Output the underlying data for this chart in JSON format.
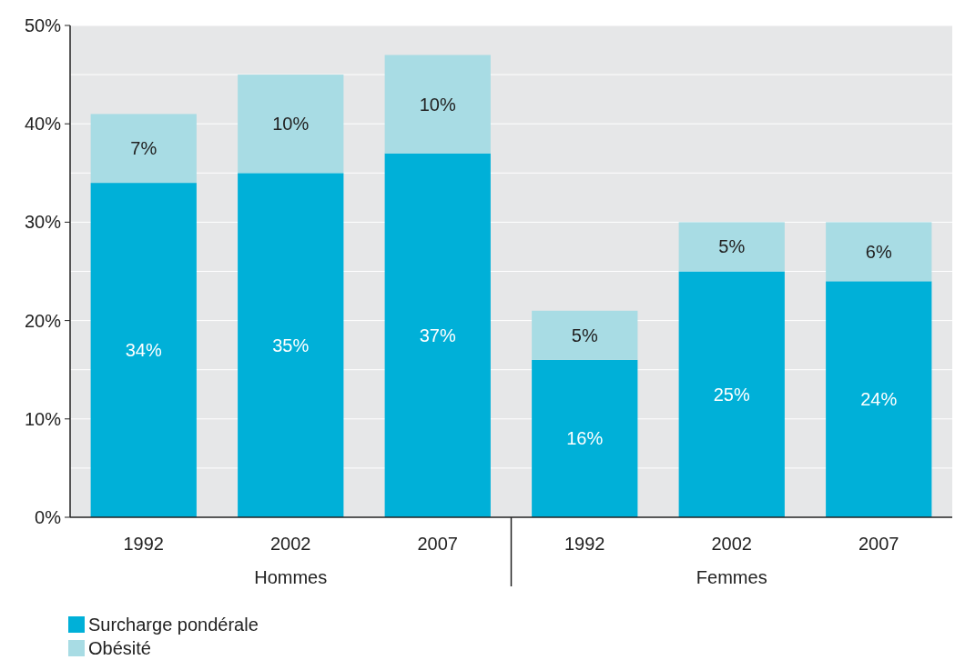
{
  "chart_data": {
    "type": "bar",
    "stacked": true,
    "categories": [
      "1992",
      "2002",
      "2007",
      "1992",
      "2002",
      "2007"
    ],
    "series": [
      {
        "name": "Surcharge pondérale",
        "color": "#00b0d8",
        "values": [
          34,
          35,
          37,
          16,
          25,
          24
        ],
        "value_labels": [
          "34%",
          "35%",
          "37%",
          "16%",
          "25%",
          "24%"
        ]
      },
      {
        "name": "Obésité",
        "color": "#a8dce4",
        "values": [
          7,
          10,
          10,
          5,
          5,
          6
        ],
        "value_labels": [
          "7%",
          "10%",
          "10%",
          "5%",
          "5%",
          "6%"
        ]
      }
    ],
    "ylim": [
      0,
      50
    ],
    "yticks": [
      {
        "value": 0,
        "label": "0%"
      },
      {
        "value": 5,
        "label": null
      },
      {
        "value": 10,
        "label": "10%"
      },
      {
        "value": 15,
        "label": null
      },
      {
        "value": 20,
        "label": "20%"
      },
      {
        "value": 25,
        "label": null
      },
      {
        "value": 30,
        "label": "30%"
      },
      {
        "value": 35,
        "label": null
      },
      {
        "value": 40,
        "label": "40%"
      },
      {
        "value": 45,
        "label": null
      },
      {
        "value": 50,
        "label": "50%"
      }
    ],
    "grid": true,
    "legend": "bottom left",
    "annotations": [
      "Hommes",
      "Femmes"
    ]
  }
}
